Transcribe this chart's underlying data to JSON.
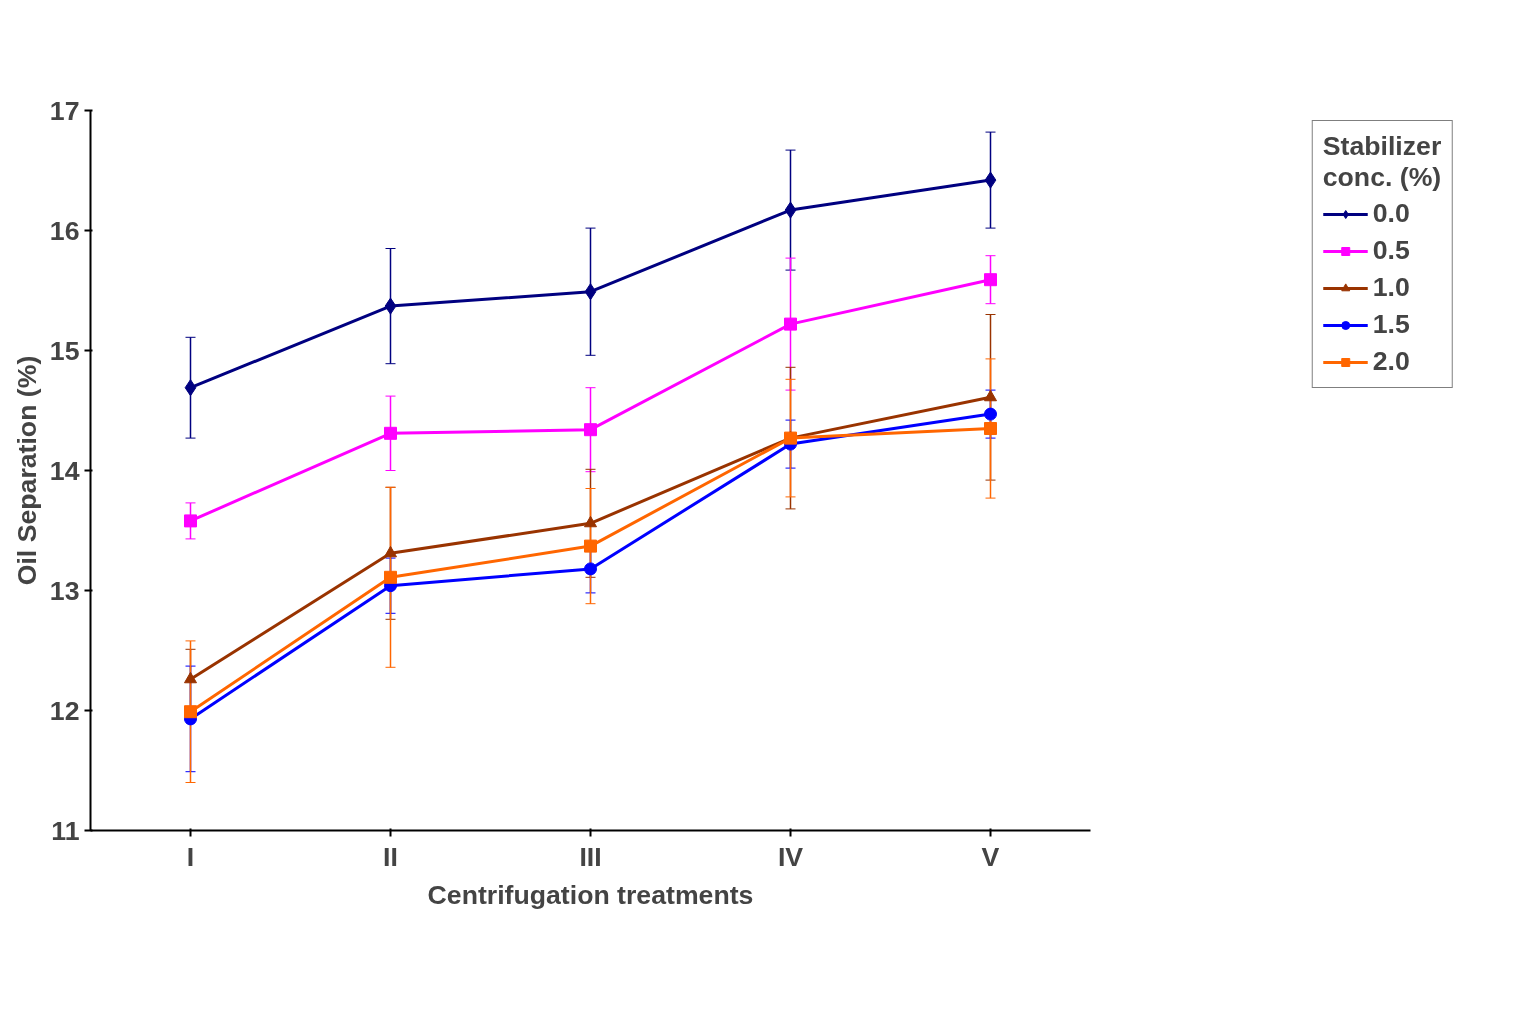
{
  "chart_data": {
    "type": "line",
    "xlabel": "Centrifugation treatments",
    "ylabel": "Oil Separation (%)",
    "legend_title": "Stabilizer\nconc. (%)",
    "legend": "top right",
    "grid": false,
    "categories": [
      "I",
      "II",
      "III",
      "IV",
      "V"
    ],
    "ylim": [
      11,
      17
    ],
    "yticks": [
      11,
      12,
      13,
      14,
      15,
      16,
      17
    ],
    "series": [
      {
        "name": "0.0",
        "color": "#000080",
        "marker": "diamond",
        "values": [
          14.69,
          15.37,
          15.49,
          16.17,
          16.42
        ],
        "errors": [
          0.42,
          0.48,
          0.53,
          0.5,
          0.4
        ]
      },
      {
        "name": "0.5",
        "color": "#ff00ff",
        "marker": "square",
        "values": [
          13.58,
          14.31,
          14.34,
          15.22,
          15.59
        ],
        "errors": [
          0.15,
          0.31,
          0.35,
          0.55,
          0.2
        ]
      },
      {
        "name": "1.0",
        "color": "#993300",
        "marker": "triangle",
        "values": [
          12.26,
          13.31,
          13.56,
          14.27,
          14.61
        ],
        "errors": [
          0.25,
          0.55,
          0.45,
          0.59,
          0.69
        ]
      },
      {
        "name": "1.5",
        "color": "#0000ff",
        "marker": "circle",
        "values": [
          11.93,
          13.04,
          13.18,
          14.22,
          14.47
        ],
        "errors": [
          0.44,
          0.23,
          0.2,
          0.2,
          0.2
        ]
      },
      {
        "name": "2.0",
        "color": "#ff6600",
        "marker": "square",
        "values": [
          11.99,
          13.11,
          13.37,
          14.27,
          14.35
        ],
        "errors": [
          0.59,
          0.75,
          0.48,
          0.49,
          0.58
        ]
      }
    ]
  }
}
